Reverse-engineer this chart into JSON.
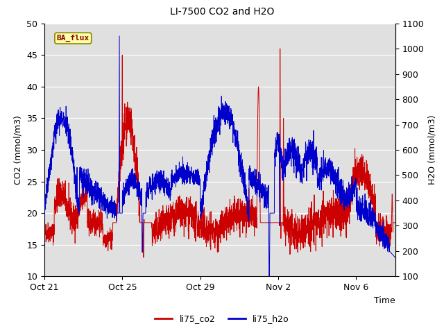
{
  "title": "LI-7500 CO2 and H2O",
  "xlabel": "Time",
  "ylabel_left": "CO2 (mmol/m3)",
  "ylabel_right": "H2O (mmol/m3)",
  "ylim_left": [
    10,
    50
  ],
  "ylim_right": [
    100,
    1100
  ],
  "color_co2": "#cc0000",
  "color_h2o": "#0000cc",
  "bg_color": "#e0e0e0",
  "legend_label_co2": "li75_co2",
  "legend_label_h2o": "li75_h2o",
  "watermark_text": "BA_flux",
  "watermark_fg": "#880000",
  "watermark_bg": "#ffffaa",
  "watermark_border": "#888800",
  "xtick_labels": [
    "Oct 21",
    "Oct 25",
    "Oct 29",
    "Nov 2",
    "Nov 6"
  ],
  "xtick_positions": [
    0,
    4,
    8,
    12,
    16
  ],
  "n_days": 18,
  "linewidth_co2": 0.7,
  "linewidth_h2o": 0.7,
  "title_fontsize": 10,
  "axis_fontsize": 9,
  "tick_fontsize": 9,
  "legend_fontsize": 9
}
